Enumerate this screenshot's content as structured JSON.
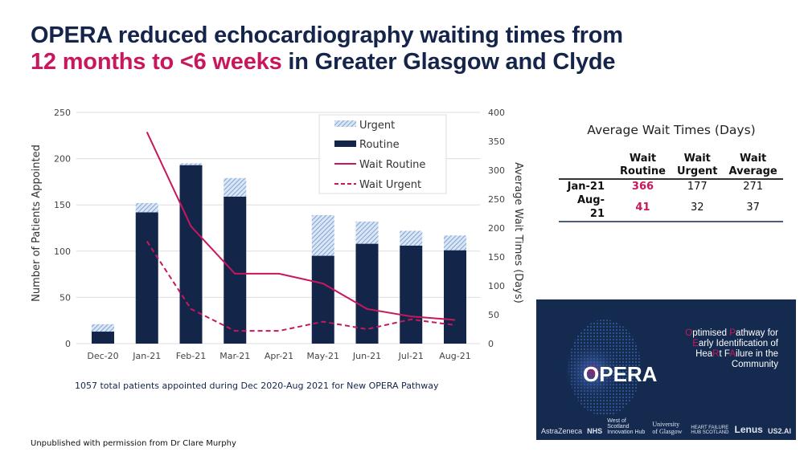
{
  "title": {
    "line1": "OPERA reduced echocardiography waiting times from",
    "line2_highlight": "12 months to <6 weeks",
    "line2_rest": " in Greater Glasgow and Clyde"
  },
  "chart_data": {
    "type": "bar",
    "categories": [
      "Dec-20",
      "Jan-21",
      "Feb-21",
      "Mar-21",
      "Apr-21",
      "May-21",
      "Jun-21",
      "Jul-21",
      "Aug-21"
    ],
    "series": [
      {
        "name": "Routine",
        "kind": "bar-stacked",
        "axis": "left",
        "color": "#13264a",
        "values": [
          13,
          142,
          193,
          159,
          0,
          95,
          108,
          106,
          101
        ]
      },
      {
        "name": "Urgent",
        "kind": "bar-stacked",
        "axis": "left",
        "color": "#8fb0dc",
        "values": [
          8,
          10,
          2,
          20,
          0,
          44,
          24,
          16,
          16
        ]
      },
      {
        "name": "Wait Routine",
        "kind": "line",
        "axis": "right",
        "color": "#c8175d",
        "values": [
          null,
          366,
          203,
          121,
          121,
          104,
          60,
          47,
          41
        ]
      },
      {
        "name": "Wait Urgent",
        "kind": "line-dashed",
        "axis": "right",
        "color": "#c8175d",
        "values": [
          null,
          177,
          60,
          22,
          22,
          38,
          25,
          42,
          32
        ]
      }
    ],
    "ylabel": "Number of Patients Appointed",
    "y2label": "Average Wait Times (Days)",
    "ylim": [
      0,
      250
    ],
    "y2lim": [
      0,
      400
    ],
    "yticks": [
      "0",
      "50",
      "100",
      "150",
      "200",
      "250"
    ],
    "y2ticks": [
      "0",
      "50",
      "100",
      "150",
      "200",
      "250",
      "300",
      "350",
      "400"
    ],
    "legend": [
      "Urgent",
      "Routine",
      "Wait Routine",
      "Wait Urgent"
    ],
    "legend_position": "top-right",
    "grid": true
  },
  "table": {
    "title": "Average Wait Times (Days)",
    "headers": [
      [
        "Wait",
        "Routine"
      ],
      [
        "Wait",
        "Urgent"
      ],
      [
        "Wait",
        "Average"
      ]
    ],
    "rows": [
      {
        "label": "Jan-21",
        "routine": "366",
        "urgent": "177",
        "average": "271"
      },
      {
        "label": "Aug-21",
        "routine": "41",
        "urgent": "32",
        "average": "37"
      }
    ]
  },
  "opera": {
    "logo": "OPERA",
    "tagline": [
      [
        "O",
        "ptimised ",
        "P",
        "athway for"
      ],
      [
        "E",
        "arly Identification of"
      ],
      [
        "Hea",
        "R",
        "t F",
        "A",
        "ilure in the"
      ],
      [
        "Community"
      ]
    ],
    "partners": [
      "AstraZeneca",
      "NHS",
      "West of Scotland Innovation Hub",
      "University of Glasgow",
      "HEART FAILURE HUB SCOTLAND",
      "Lenus",
      "US2.AI"
    ]
  },
  "footnote": "1057 total patients appointed during Dec 2020-Aug 2021 for New OPERA Pathway",
  "credit": "Unpublished with permission from Dr Clare Murphy"
}
